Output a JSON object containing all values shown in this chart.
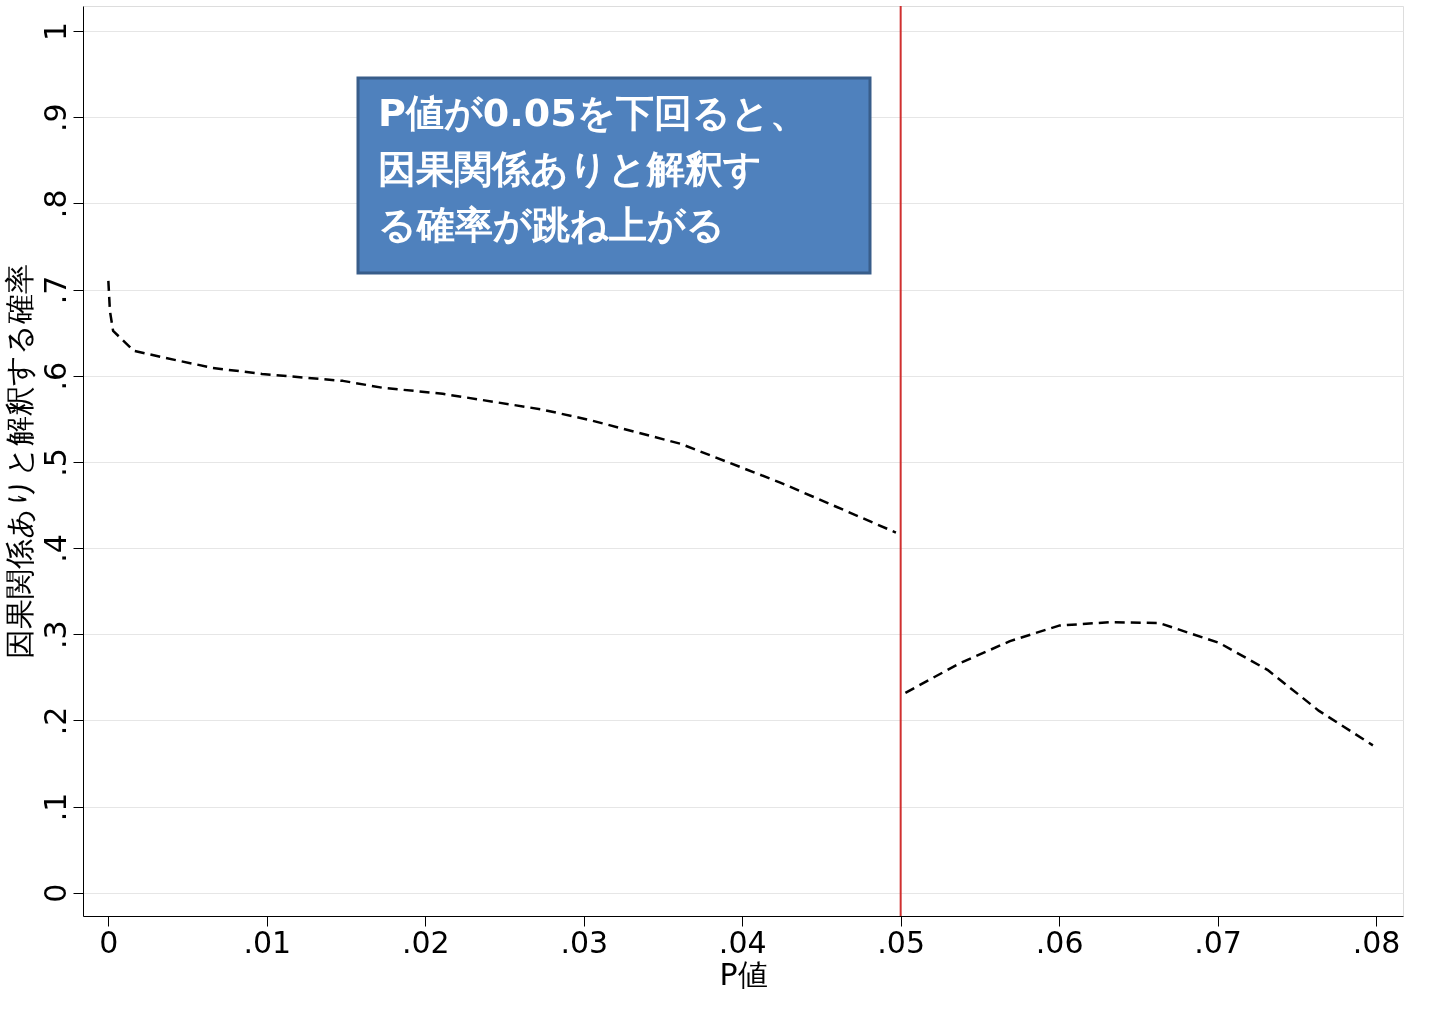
{
  "chart_data": {
    "type": "line",
    "xlabel": "P値",
    "ylabel": "因果関係ありと解釈する確率",
    "series": [
      {
        "color": "#000000",
        "line_style": "dashed",
        "x": [
          0,
          0.0001,
          0.0003,
          0.0016,
          0.0035,
          0.0066,
          0.0097,
          0.0148,
          0.0173,
          0.0211,
          0.0273,
          0.0305,
          0.0361,
          0.0424,
          0.0497
        ],
        "values": [
          0.71,
          0.675,
          0.652,
          0.629,
          0.621,
          0.609,
          0.602,
          0.594,
          0.586,
          0.579,
          0.561,
          0.548,
          0.521,
          0.476,
          0.418
        ]
      },
      {
        "color": "#000000",
        "line_style": "dashed",
        "x": [
          0.0503,
          0.0537,
          0.0569,
          0.06,
          0.0632,
          0.0663,
          0.0701,
          0.0732,
          0.0764,
          0.0798
        ],
        "values": [
          0.232,
          0.266,
          0.292,
          0.31,
          0.314,
          0.313,
          0.29,
          0.258,
          0.211,
          0.171
        ]
      }
    ],
    "xlim": [
      -0.0016,
      0.0817
    ],
    "ylim": [
      -0.027,
      1.029
    ],
    "xticks": [
      0,
      {
        "value": 0.01,
        "label": ".01"
      },
      {
        "value": 0.02,
        "label": ".02"
      },
      {
        "value": 0.03,
        "label": ".03"
      },
      {
        "value": 0.04,
        "label": ".04"
      },
      {
        "value": 0.05,
        "label": ".05"
      },
      {
        "value": 0.06,
        "label": ".06"
      },
      {
        "value": 0.07,
        "label": ".07"
      },
      {
        "value": 0.08,
        "label": ".08"
      }
    ],
    "yticks": [
      0,
      {
        "value": 0.1,
        "label": ".1"
      },
      {
        "value": 0.2,
        "label": ".2"
      },
      {
        "value": 0.3,
        "label": ".3"
      },
      {
        "value": 0.4,
        "label": ".4"
      },
      {
        "value": 0.5,
        "label": ".5"
      },
      {
        "value": 0.6,
        "label": ".6"
      },
      {
        "value": 0.7,
        "label": ".7"
      },
      {
        "value": 0.8,
        "label": ".8"
      },
      {
        "value": 0.9,
        "label": ".9"
      },
      1
    ],
    "grid": "y",
    "ref_lines": [
      {
        "axis": "x",
        "value": 0.05,
        "color": "#d03030"
      }
    ],
    "annotations": [
      "P値が0.05を下回ると、因果関係ありと解釈する確率が跳ね上がる"
    ]
  }
}
